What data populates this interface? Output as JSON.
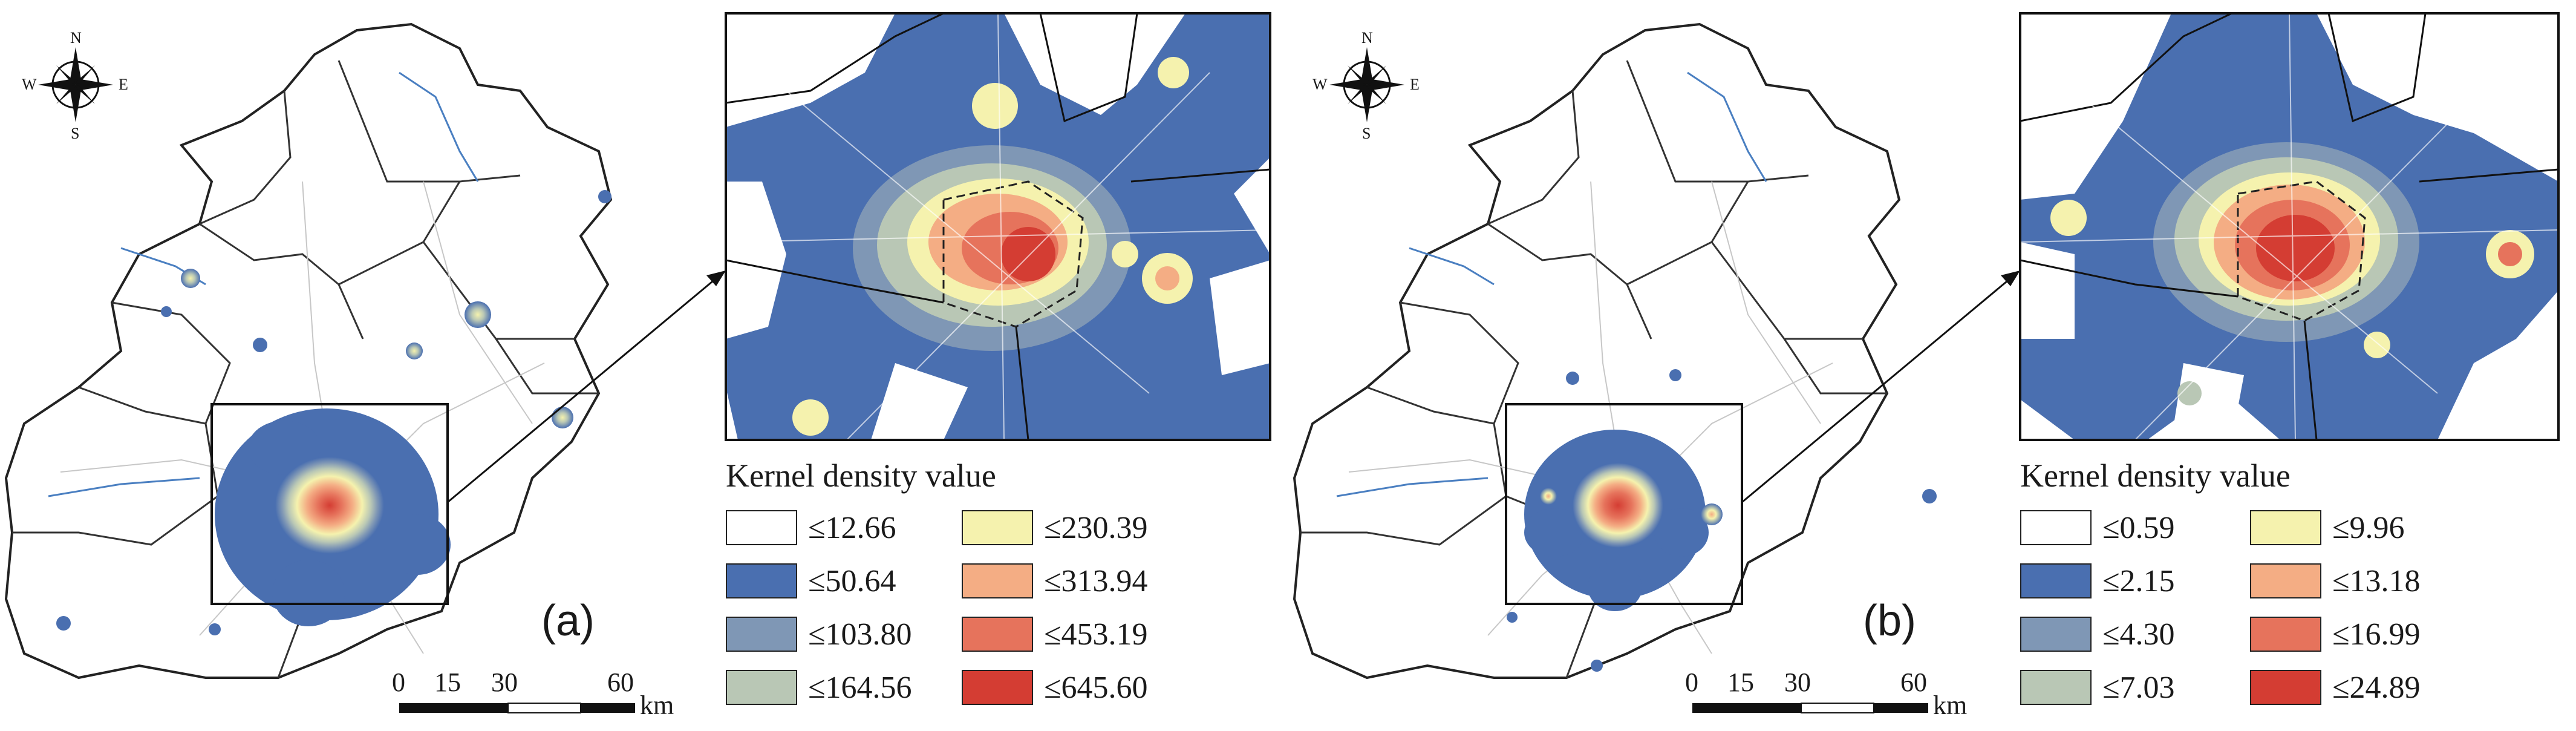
{
  "panels": [
    {
      "id": "a",
      "panel_label": "(a)",
      "legend": {
        "title": "Kernel density value",
        "classes": [
          {
            "label": "≤12.66",
            "color": "#ffffff"
          },
          {
            "label": "≤50.64",
            "color": "#4a6fb0"
          },
          {
            "label": "≤103.80",
            "color": "#7f97b5"
          },
          {
            "label": "≤164.56",
            "color": "#b9c7b5"
          },
          {
            "label": "≤230.39",
            "color": "#f5f2ae"
          },
          {
            "label": "≤313.94",
            "color": "#f4ad84"
          },
          {
            "label": "≤453.19",
            "color": "#e6735c"
          },
          {
            "label": "≤645.60",
            "color": "#d43d33"
          }
        ]
      },
      "scale_bar": {
        "ticks": [
          "0",
          "15",
          "30",
          "60"
        ],
        "unit": "km"
      },
      "compass": {
        "n": "N",
        "s": "S",
        "e": "E",
        "w": "W"
      }
    },
    {
      "id": "b",
      "panel_label": "(b)",
      "legend": {
        "title": "Kernel density value",
        "classes": [
          {
            "label": "≤0.59",
            "color": "#ffffff"
          },
          {
            "label": "≤2.15",
            "color": "#4a6fb0"
          },
          {
            "label": "≤4.30",
            "color": "#7f97b5"
          },
          {
            "label": "≤7.03",
            "color": "#b9c7b5"
          },
          {
            "label": "≤9.96",
            "color": "#f5f2ae"
          },
          {
            "label": "≤13.18",
            "color": "#f4ad84"
          },
          {
            "label": "≤16.99",
            "color": "#e6735c"
          },
          {
            "label": "≤24.89",
            "color": "#d43d33"
          }
        ]
      },
      "scale_bar": {
        "ticks": [
          "0",
          "15",
          "30",
          "60"
        ],
        "unit": "km"
      },
      "compass": {
        "n": "N",
        "s": "S",
        "e": "E",
        "w": "W"
      }
    }
  ]
}
